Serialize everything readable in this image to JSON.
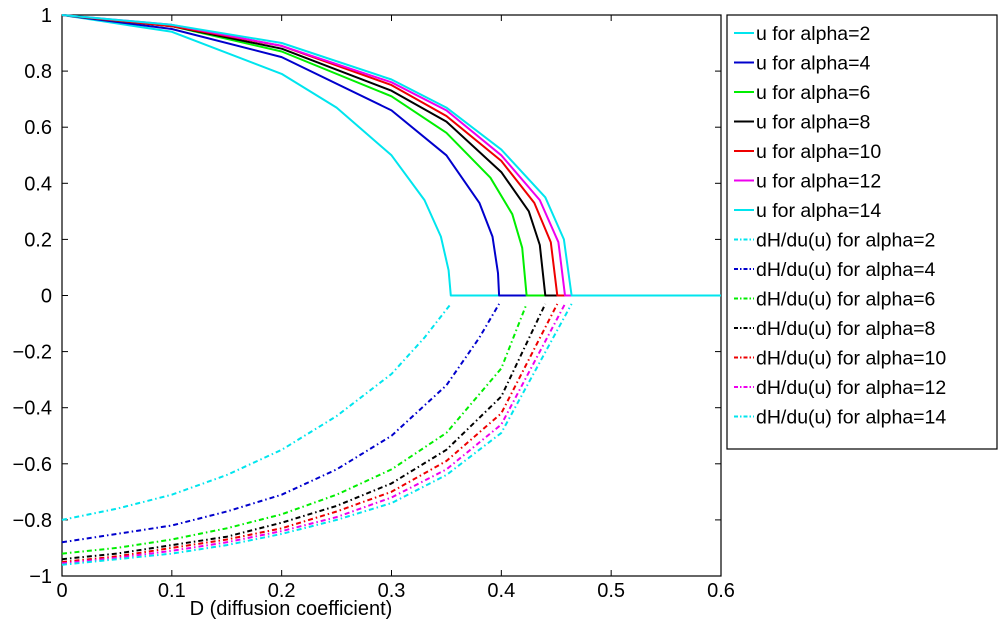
{
  "chart_data": {
    "type": "line",
    "title": "",
    "xlabel": "D (diffusion coefficient)",
    "ylabel": "",
    "xlim": [
      0,
      0.6
    ],
    "ylim": [
      -1,
      1
    ],
    "xticks": [
      "0",
      "0.1",
      "0.2",
      "0.3",
      "0.4",
      "0.5",
      "0.6"
    ],
    "yticks": [
      "−1",
      "−0.8",
      "−0.6",
      "−0.4",
      "−0.2",
      "0",
      "0.2",
      "0.4",
      "0.6",
      "0.8",
      "1"
    ],
    "grid": false,
    "legend_position": "outside-right",
    "series": [
      {
        "name": "u for alpha=2",
        "color": "#00e5ee",
        "style": "solid",
        "x": [
          0,
          0.1,
          0.2,
          0.25,
          0.3,
          0.33,
          0.345,
          0.352,
          0.354,
          0.6
        ],
        "y": [
          1,
          0.94,
          0.79,
          0.67,
          0.5,
          0.34,
          0.21,
          0.09,
          0,
          0
        ]
      },
      {
        "name": "u for alpha=4",
        "color": "#0000cc",
        "style": "solid",
        "x": [
          0,
          0.1,
          0.2,
          0.3,
          0.35,
          0.38,
          0.392,
          0.397,
          0.398,
          0.6
        ],
        "y": [
          1,
          0.95,
          0.85,
          0.66,
          0.5,
          0.33,
          0.21,
          0.08,
          0,
          0
        ]
      },
      {
        "name": "u for alpha=6",
        "color": "#00ee00",
        "style": "solid",
        "x": [
          0,
          0.1,
          0.2,
          0.3,
          0.35,
          0.39,
          0.41,
          0.419,
          0.423,
          0.6
        ],
        "y": [
          1,
          0.96,
          0.87,
          0.71,
          0.58,
          0.42,
          0.29,
          0.17,
          0,
          0
        ]
      },
      {
        "name": "u for alpha=8",
        "color": "#000000",
        "style": "solid",
        "x": [
          0,
          0.1,
          0.2,
          0.3,
          0.35,
          0.4,
          0.425,
          0.435,
          0.44,
          0.6
        ],
        "y": [
          1,
          0.96,
          0.88,
          0.73,
          0.62,
          0.44,
          0.3,
          0.18,
          0,
          0
        ]
      },
      {
        "name": "u for alpha=10",
        "color": "#ee0000",
        "style": "solid",
        "x": [
          0,
          0.1,
          0.2,
          0.3,
          0.35,
          0.4,
          0.43,
          0.445,
          0.451,
          0.6
        ],
        "y": [
          1,
          0.96,
          0.89,
          0.75,
          0.64,
          0.48,
          0.33,
          0.19,
          0,
          0
        ]
      },
      {
        "name": "u for alpha=12",
        "color": "#ee00ee",
        "style": "solid",
        "x": [
          0,
          0.1,
          0.2,
          0.3,
          0.35,
          0.4,
          0.435,
          0.452,
          0.458,
          0.6
        ],
        "y": [
          1,
          0.965,
          0.89,
          0.76,
          0.66,
          0.5,
          0.34,
          0.19,
          0,
          0
        ]
      },
      {
        "name": "u for alpha=14",
        "color": "#00e5ee",
        "style": "solid",
        "x": [
          0,
          0.1,
          0.2,
          0.3,
          0.35,
          0.4,
          0.44,
          0.457,
          0.464,
          0.6
        ],
        "y": [
          1,
          0.965,
          0.9,
          0.77,
          0.67,
          0.52,
          0.35,
          0.2,
          0,
          0
        ]
      },
      {
        "name": "dH/du(u) for alpha=2",
        "color": "#00e5ee",
        "style": "dashdot",
        "x": [
          0,
          0.05,
          0.1,
          0.15,
          0.2,
          0.25,
          0.3,
          0.33,
          0.354
        ],
        "y": [
          -0.8,
          -0.76,
          -0.71,
          -0.64,
          -0.55,
          -0.43,
          -0.28,
          -0.15,
          -0.03
        ]
      },
      {
        "name": "dH/du(u) for alpha=4",
        "color": "#0000cc",
        "style": "dashdot",
        "x": [
          0,
          0.05,
          0.1,
          0.15,
          0.2,
          0.25,
          0.3,
          0.35,
          0.38,
          0.398
        ],
        "y": [
          -0.88,
          -0.85,
          -0.82,
          -0.77,
          -0.71,
          -0.62,
          -0.5,
          -0.32,
          -0.15,
          -0.03
        ]
      },
      {
        "name": "dH/du(u) for alpha=6",
        "color": "#00ee00",
        "style": "dashdot",
        "x": [
          0,
          0.05,
          0.1,
          0.15,
          0.2,
          0.25,
          0.3,
          0.35,
          0.4,
          0.423
        ],
        "y": [
          -0.92,
          -0.9,
          -0.87,
          -0.83,
          -0.78,
          -0.71,
          -0.62,
          -0.49,
          -0.26,
          -0.03
        ]
      },
      {
        "name": "dH/du(u) for alpha=8",
        "color": "#000000",
        "style": "dashdot",
        "x": [
          0,
          0.05,
          0.1,
          0.15,
          0.2,
          0.25,
          0.3,
          0.35,
          0.4,
          0.44
        ],
        "y": [
          -0.94,
          -0.92,
          -0.89,
          -0.86,
          -0.81,
          -0.75,
          -0.67,
          -0.55,
          -0.36,
          -0.03
        ]
      },
      {
        "name": "dH/du(u) for alpha=10",
        "color": "#ee0000",
        "style": "dashdot",
        "x": [
          0,
          0.05,
          0.1,
          0.15,
          0.2,
          0.25,
          0.3,
          0.35,
          0.4,
          0.451
        ],
        "y": [
          -0.95,
          -0.93,
          -0.9,
          -0.87,
          -0.83,
          -0.77,
          -0.7,
          -0.59,
          -0.42,
          -0.03
        ]
      },
      {
        "name": "dH/du(u) for alpha=12",
        "color": "#ee00ee",
        "style": "dashdot",
        "x": [
          0,
          0.05,
          0.1,
          0.15,
          0.2,
          0.25,
          0.3,
          0.35,
          0.4,
          0.458
        ],
        "y": [
          -0.955,
          -0.935,
          -0.91,
          -0.88,
          -0.84,
          -0.79,
          -0.72,
          -0.62,
          -0.46,
          -0.03
        ]
      },
      {
        "name": "dH/du(u) for alpha=14",
        "color": "#00e5ee",
        "style": "dashdot",
        "x": [
          0,
          0.05,
          0.1,
          0.15,
          0.2,
          0.25,
          0.3,
          0.35,
          0.4,
          0.464
        ],
        "y": [
          -0.96,
          -0.94,
          -0.92,
          -0.89,
          -0.85,
          -0.8,
          -0.74,
          -0.64,
          -0.49,
          -0.03
        ]
      }
    ]
  }
}
